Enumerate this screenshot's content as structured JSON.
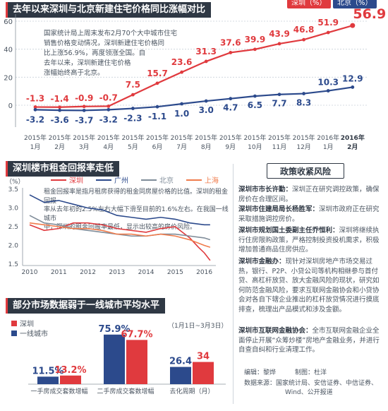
{
  "top": {
    "title": "去年以来深圳与北京新建住宅价格同比涨幅对比",
    "legend": [
      "深圳（%）",
      "北京（%）"
    ],
    "note": [
      "国家统计局上周末发布2月70个大中城市住宅",
      "销售价格变动情况，深圳新建住宅价格同",
      "比上涨56.9%，再度领涨全国。自",
      "去年以来，深圳新建住宅价格",
      "涨幅始终高于北京。"
    ]
  },
  "rent": {
    "title": "深圳楼市租金回报率走低",
    "unit": "（%）",
    "legend": [
      "深圳",
      "广州",
      "北京",
      "上海"
    ],
    "note": [
      "租金回报率是指月租房获得的租金同房屋价格的比值。深圳的租金回报",
      "率从去年初的2.5%左右大幅下滑至目前的1.6%左右。在我国一线城市",
      "中，深圳的租金回报率最低，显示出较高的房价风险。"
    ]
  },
  "bars": {
    "title": "部分市场数据弱于一线城市平均水平",
    "legend": [
      "深圳",
      "一线城市"
    ],
    "date_range": "（1月1日~3月3日）"
  },
  "policy": {
    "title": "政策收紧风险",
    "items": [
      {
        "head": "深圳市市长许勤：",
        "body": "深圳正在研究调控政策，确保房价在合理区间。"
      },
      {
        "head": "深圳市住建局局长杨胜军：",
        "body": "深圳市政府正在研究采取措施调控房价。"
      },
      {
        "head": "深圳市规划国土委副主任乔恒利：",
        "body": "深圳将继续执行住房限购政策，严格控制投资投机需求，积极增加普通商品住房供应。"
      },
      {
        "head": "深圳市金融办：",
        "body": "现针对深圳房地产市场交易过热，银行、P2P、小贷公司等机构相继参与首付贷、高杠杆放贷、放大金融风险的现状，研究如何防范金融风险，要求互联网金融协会和小贷协会对各自下辖企业推出的杠杆放贷情况进行摸底排查，梳理出产品模式和涉及金额。"
      },
      {
        "head": "深圳市互联网金融协会：",
        "body": "全市互联网金融企业全面停止开展“众筹炒楼”房地产金融业务，并进行自查自纠和行业清理工作。"
      }
    ],
    "editor": "编辑：黎烨",
    "designer": "制图：杜洋",
    "source_lines": [
      "数据来源：国家统计局、安信证券、中信证券、",
      "Wind、公开报道"
    ]
  },
  "chart_data": [
    {
      "type": "line",
      "title": "去年以来深圳与北京新建住宅价格同比涨幅对比",
      "categories": [
        "2015年1月",
        "2015年2月",
        "2015年3月",
        "2015年4月",
        "2015年5月",
        "2015年6月",
        "2015年7月",
        "2015年8月",
        "2015年9月",
        "2015年10月",
        "2015年11月",
        "2015年12月",
        "2016年1月",
        "2016年2月"
      ],
      "series": [
        {
          "name": "深圳（%）",
          "color": "#e03a3e",
          "values": [
            -1.3,
            -1.4,
            -0.9,
            -0.7,
            7.5,
            15.7,
            23.6,
            31.3,
            37.6,
            39.9,
            43.9,
            46.8,
            51.9,
            56.9
          ]
        },
        {
          "name": "北京（%）",
          "color": "#2c4a8c",
          "values": [
            -3.2,
            -3.6,
            -3.7,
            -3.2,
            -2.3,
            -1.1,
            1.0,
            3.0,
            4.7,
            6.5,
            7.7,
            8.3,
            10.3,
            12.9
          ]
        }
      ],
      "y_ticks": [
        0,
        20,
        40,
        60
      ],
      "ylim": [
        -9,
        62
      ]
    },
    {
      "type": "line",
      "title": "深圳楼市租金回报率走低",
      "ylabel": "（%）",
      "x_ticks": [
        "2010",
        "2011",
        "2012",
        "2013",
        "2014",
        "2015",
        "2016"
      ],
      "y_ticks": [
        "1.5",
        "2.0",
        "2.5",
        "3.0",
        "3.5"
      ],
      "ylim": [
        1.5,
        3.5
      ],
      "xlim": [
        2010,
        2016.3
      ],
      "series": [
        {
          "name": "深圳",
          "color": "#e03a3e",
          "points": [
            [
              2010.0,
              2.55
            ],
            [
              2010.5,
              2.4
            ],
            [
              2011.0,
              2.45
            ],
            [
              2011.5,
              2.6
            ],
            [
              2012.0,
              2.6
            ],
            [
              2012.5,
              2.55
            ],
            [
              2013.0,
              2.45
            ],
            [
              2013.5,
              2.4
            ],
            [
              2014.0,
              2.35
            ],
            [
              2014.5,
              2.45
            ],
            [
              2015.0,
              2.5
            ],
            [
              2015.5,
              2.2
            ],
            [
              2015.8,
              1.95
            ],
            [
              2016.0,
              1.8
            ],
            [
              2016.2,
              1.6
            ]
          ]
        },
        {
          "name": "广州",
          "color": "#2c4a8c",
          "points": [
            [
              2010.0,
              3.35
            ],
            [
              2010.5,
              3.15
            ],
            [
              2011.0,
              3.2
            ],
            [
              2011.5,
              3.1
            ],
            [
              2012.0,
              3.0
            ],
            [
              2012.5,
              2.95
            ],
            [
              2013.0,
              2.8
            ],
            [
              2013.5,
              2.75
            ],
            [
              2014.0,
              2.7
            ],
            [
              2014.5,
              2.75
            ],
            [
              2015.0,
              2.7
            ],
            [
              2015.5,
              2.6
            ],
            [
              2016.0,
              2.55
            ],
            [
              2016.2,
              2.55
            ]
          ]
        },
        {
          "name": "北京",
          "color": "#7f8c99",
          "points": [
            [
              2010.0,
              2.8
            ],
            [
              2010.5,
              2.6
            ],
            [
              2011.0,
              2.55
            ],
            [
              2011.5,
              2.45
            ],
            [
              2012.0,
              2.4
            ],
            [
              2012.5,
              2.35
            ],
            [
              2013.0,
              2.3
            ],
            [
              2013.5,
              2.25
            ],
            [
              2014.0,
              2.25
            ],
            [
              2014.5,
              2.3
            ],
            [
              2015.0,
              2.3
            ],
            [
              2015.5,
              2.25
            ],
            [
              2016.0,
              2.2
            ],
            [
              2016.2,
              2.15
            ]
          ]
        },
        {
          "name": "上海",
          "color": "#f07c4c",
          "points": [
            [
              2010.0,
              2.6
            ],
            [
              2010.5,
              2.55
            ],
            [
              2011.0,
              2.5
            ],
            [
              2011.5,
              2.45
            ],
            [
              2012.0,
              2.45
            ],
            [
              2012.5,
              2.4
            ],
            [
              2013.0,
              2.3
            ],
            [
              2013.5,
              2.3
            ],
            [
              2014.0,
              2.25
            ],
            [
              2014.5,
              2.3
            ],
            [
              2015.0,
              2.25
            ],
            [
              2015.5,
              2.15
            ],
            [
              2016.0,
              2.0
            ],
            [
              2016.2,
              1.95
            ]
          ]
        }
      ]
    },
    {
      "type": "bar",
      "title": "部分市场数据弱于一线城市平均水平",
      "categories": [
        "一手房成交套数增幅",
        "二手房成交套数增幅",
        "去化周期（月）"
      ],
      "series": [
        {
          "name": "一线城市",
          "color": "#2c4a8c",
          "values": [
            11.5,
            75.9,
            26.4
          ],
          "labels": [
            "11.5%",
            "75.9%",
            "26.4"
          ]
        },
        {
          "name": "深圳",
          "color": "#e03a3e",
          "values": [
            13.2,
            67.7,
            34
          ],
          "labels": [
            "13.2%",
            "67.7%",
            "34"
          ]
        }
      ],
      "ylim": [
        0,
        80
      ]
    }
  ]
}
